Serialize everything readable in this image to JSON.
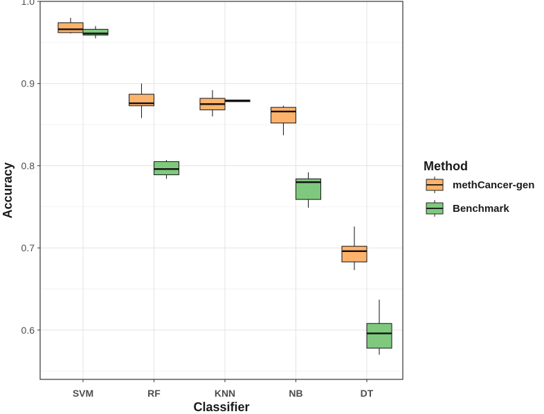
{
  "chart_data": {
    "type": "boxplot",
    "xlabel": "Classifier",
    "ylabel": "Accuracy",
    "ylim": [
      0.54,
      1.0
    ],
    "yticks": [
      0.6,
      0.7,
      0.8,
      0.9,
      1.0
    ],
    "ytick_labels": [
      "0.6",
      "0.7",
      "0.8",
      "0.9",
      "1.0"
    ],
    "grid": true,
    "legend_position": "right",
    "legend_title": "Method",
    "categories": [
      "SVM",
      "RF",
      "KNN",
      "NB",
      "DT"
    ],
    "series": [
      {
        "name": "methCancer-gen",
        "color": "#FDB36B",
        "boxes": [
          {
            "min": 0.961,
            "q1": 0.962,
            "median": 0.966,
            "q3": 0.974,
            "max": 0.98
          },
          {
            "min": 0.858,
            "q1": 0.873,
            "median": 0.876,
            "q3": 0.887,
            "max": 0.9
          },
          {
            "min": 0.86,
            "q1": 0.868,
            "median": 0.875,
            "q3": 0.882,
            "max": 0.892
          },
          {
            "min": 0.837,
            "q1": 0.852,
            "median": 0.866,
            "q3": 0.871,
            "max": 0.873
          },
          {
            "min": 0.673,
            "q1": 0.683,
            "median": 0.696,
            "q3": 0.702,
            "max": 0.726
          }
        ]
      },
      {
        "name": "Benchmark",
        "color": "#7FC97F",
        "boxes": [
          {
            "min": 0.955,
            "q1": 0.959,
            "median": 0.961,
            "q3": 0.966,
            "max": 0.97
          },
          {
            "min": 0.784,
            "q1": 0.789,
            "median": 0.796,
            "q3": 0.805,
            "max": 0.807
          },
          {
            "min": 0.878,
            "q1": 0.878,
            "median": 0.879,
            "q3": 0.88,
            "max": 0.88
          },
          {
            "min": 0.749,
            "q1": 0.759,
            "median": 0.78,
            "q3": 0.784,
            "max": 0.792
          },
          {
            "min": 0.57,
            "q1": 0.578,
            "median": 0.596,
            "q3": 0.608,
            "max": 0.637
          }
        ]
      }
    ]
  }
}
